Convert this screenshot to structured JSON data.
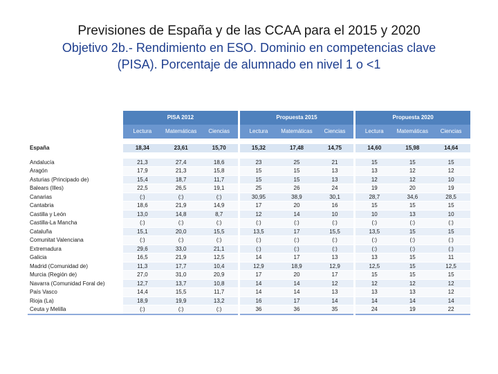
{
  "title": {
    "line1": "Previsiones de España y de las CCAA para el 2015 y 2020",
    "line2": "Objetivo 2b.- Rendimiento en ESO. Dominio en competencias clave",
    "line3": "(PISA). Porcentaje de alumnado en nivel 1 o <1"
  },
  "table": {
    "groups": [
      "PISA 2012",
      "Propuesta 2015",
      "Propuesta 2020"
    ],
    "subheaders": [
      "Lectura",
      "Matemáticas",
      "Ciencias",
      "Lectura",
      "Matemáticas",
      "Ciencias",
      "Lectura",
      "Matemáticas",
      "Ciencias"
    ],
    "national": {
      "name": "España",
      "values": [
        "18,34",
        "23,61",
        "15,70",
        "15,32",
        "17,48",
        "14,75",
        "14,60",
        "15,98",
        "14,64"
      ]
    },
    "rows": [
      {
        "name": "Andalucía",
        "values": [
          "21,3",
          "27,4",
          "18,6",
          "23",
          "25",
          "21",
          "15",
          "15",
          "15"
        ]
      },
      {
        "name": "Aragón",
        "values": [
          "17,9",
          "21,3",
          "15,8",
          "15",
          "15",
          "13",
          "13",
          "12",
          "12"
        ]
      },
      {
        "name": "Asturias (Principado de)",
        "values": [
          "15,4",
          "18,7",
          "11,7",
          "15",
          "15",
          "13",
          "12",
          "12",
          "10"
        ]
      },
      {
        "name": "Balears (Illes)",
        "values": [
          "22,5",
          "26,5",
          "19,1",
          "25",
          "26",
          "24",
          "19",
          "20",
          "19"
        ]
      },
      {
        "name": "Canarias",
        "values": [
          "(:)",
          "(:)",
          "(:)",
          "30,95",
          "38,9",
          "30,1",
          "28,7",
          "34,6",
          "28,5"
        ]
      },
      {
        "name": "Cantabria",
        "values": [
          "18,6",
          "21,9",
          "14,9",
          "17",
          "20",
          "16",
          "15",
          "15",
          "15"
        ]
      },
      {
        "name": "Castilla y León",
        "values": [
          "13,0",
          "14,8",
          "8,7",
          "12",
          "14",
          "10",
          "10",
          "13",
          "10"
        ]
      },
      {
        "name": "Castilla-La Mancha",
        "values": [
          "(:)",
          "(:)",
          "(:)",
          "(:)",
          "(:)",
          "(:)",
          "(:)",
          "(:)",
          "(:)"
        ]
      },
      {
        "name": "Cataluña",
        "values": [
          "15,1",
          "20,0",
          "15,5",
          "13,5",
          "17",
          "15,5",
          "13,5",
          "15",
          "15"
        ]
      },
      {
        "name": "Comunitat Valenciana",
        "values": [
          "(:)",
          "(:)",
          "(:)",
          "(:)",
          "(:)",
          "(:)",
          "(:)",
          "(:)",
          "(:)"
        ]
      },
      {
        "name": "Extremadura",
        "values": [
          "29,6",
          "33,0",
          "21,1",
          "(:)",
          "(:)",
          "(:)",
          "(:)",
          "(:)",
          "(:)"
        ]
      },
      {
        "name": "Galicia",
        "values": [
          "16,5",
          "21,9",
          "12,5",
          "14",
          "17",
          "13",
          "13",
          "15",
          "11"
        ]
      },
      {
        "name": "Madrid (Comunidad de)",
        "values": [
          "11,3",
          "17,7",
          "10,4",
          "12,9",
          "18,9",
          "12,9",
          "12,5",
          "15",
          "12,5"
        ]
      },
      {
        "name": "Murcia (Región de)",
        "values": [
          "27,0",
          "31,0",
          "20,9",
          "17",
          "20",
          "17",
          "15",
          "15",
          "15"
        ]
      },
      {
        "name": "Navarra (Comunidad Foral de)",
        "values": [
          "12,7",
          "13,7",
          "10,8",
          "14",
          "14",
          "12",
          "12",
          "12",
          "12"
        ]
      },
      {
        "name": "País Vasco",
        "values": [
          "14,4",
          "15,5",
          "11,7",
          "14",
          "14",
          "13",
          "13",
          "13",
          "12"
        ]
      },
      {
        "name": "Rioja (La)",
        "values": [
          "18,9",
          "19,9",
          "13,2",
          "16",
          "17",
          "14",
          "14",
          "14",
          "14"
        ]
      },
      {
        "name": "Ceuta y Melilla",
        "values": [
          "(:)",
          "(:)",
          "(:)",
          "36",
          "36",
          "35",
          "24",
          "19",
          "22"
        ]
      }
    ]
  }
}
